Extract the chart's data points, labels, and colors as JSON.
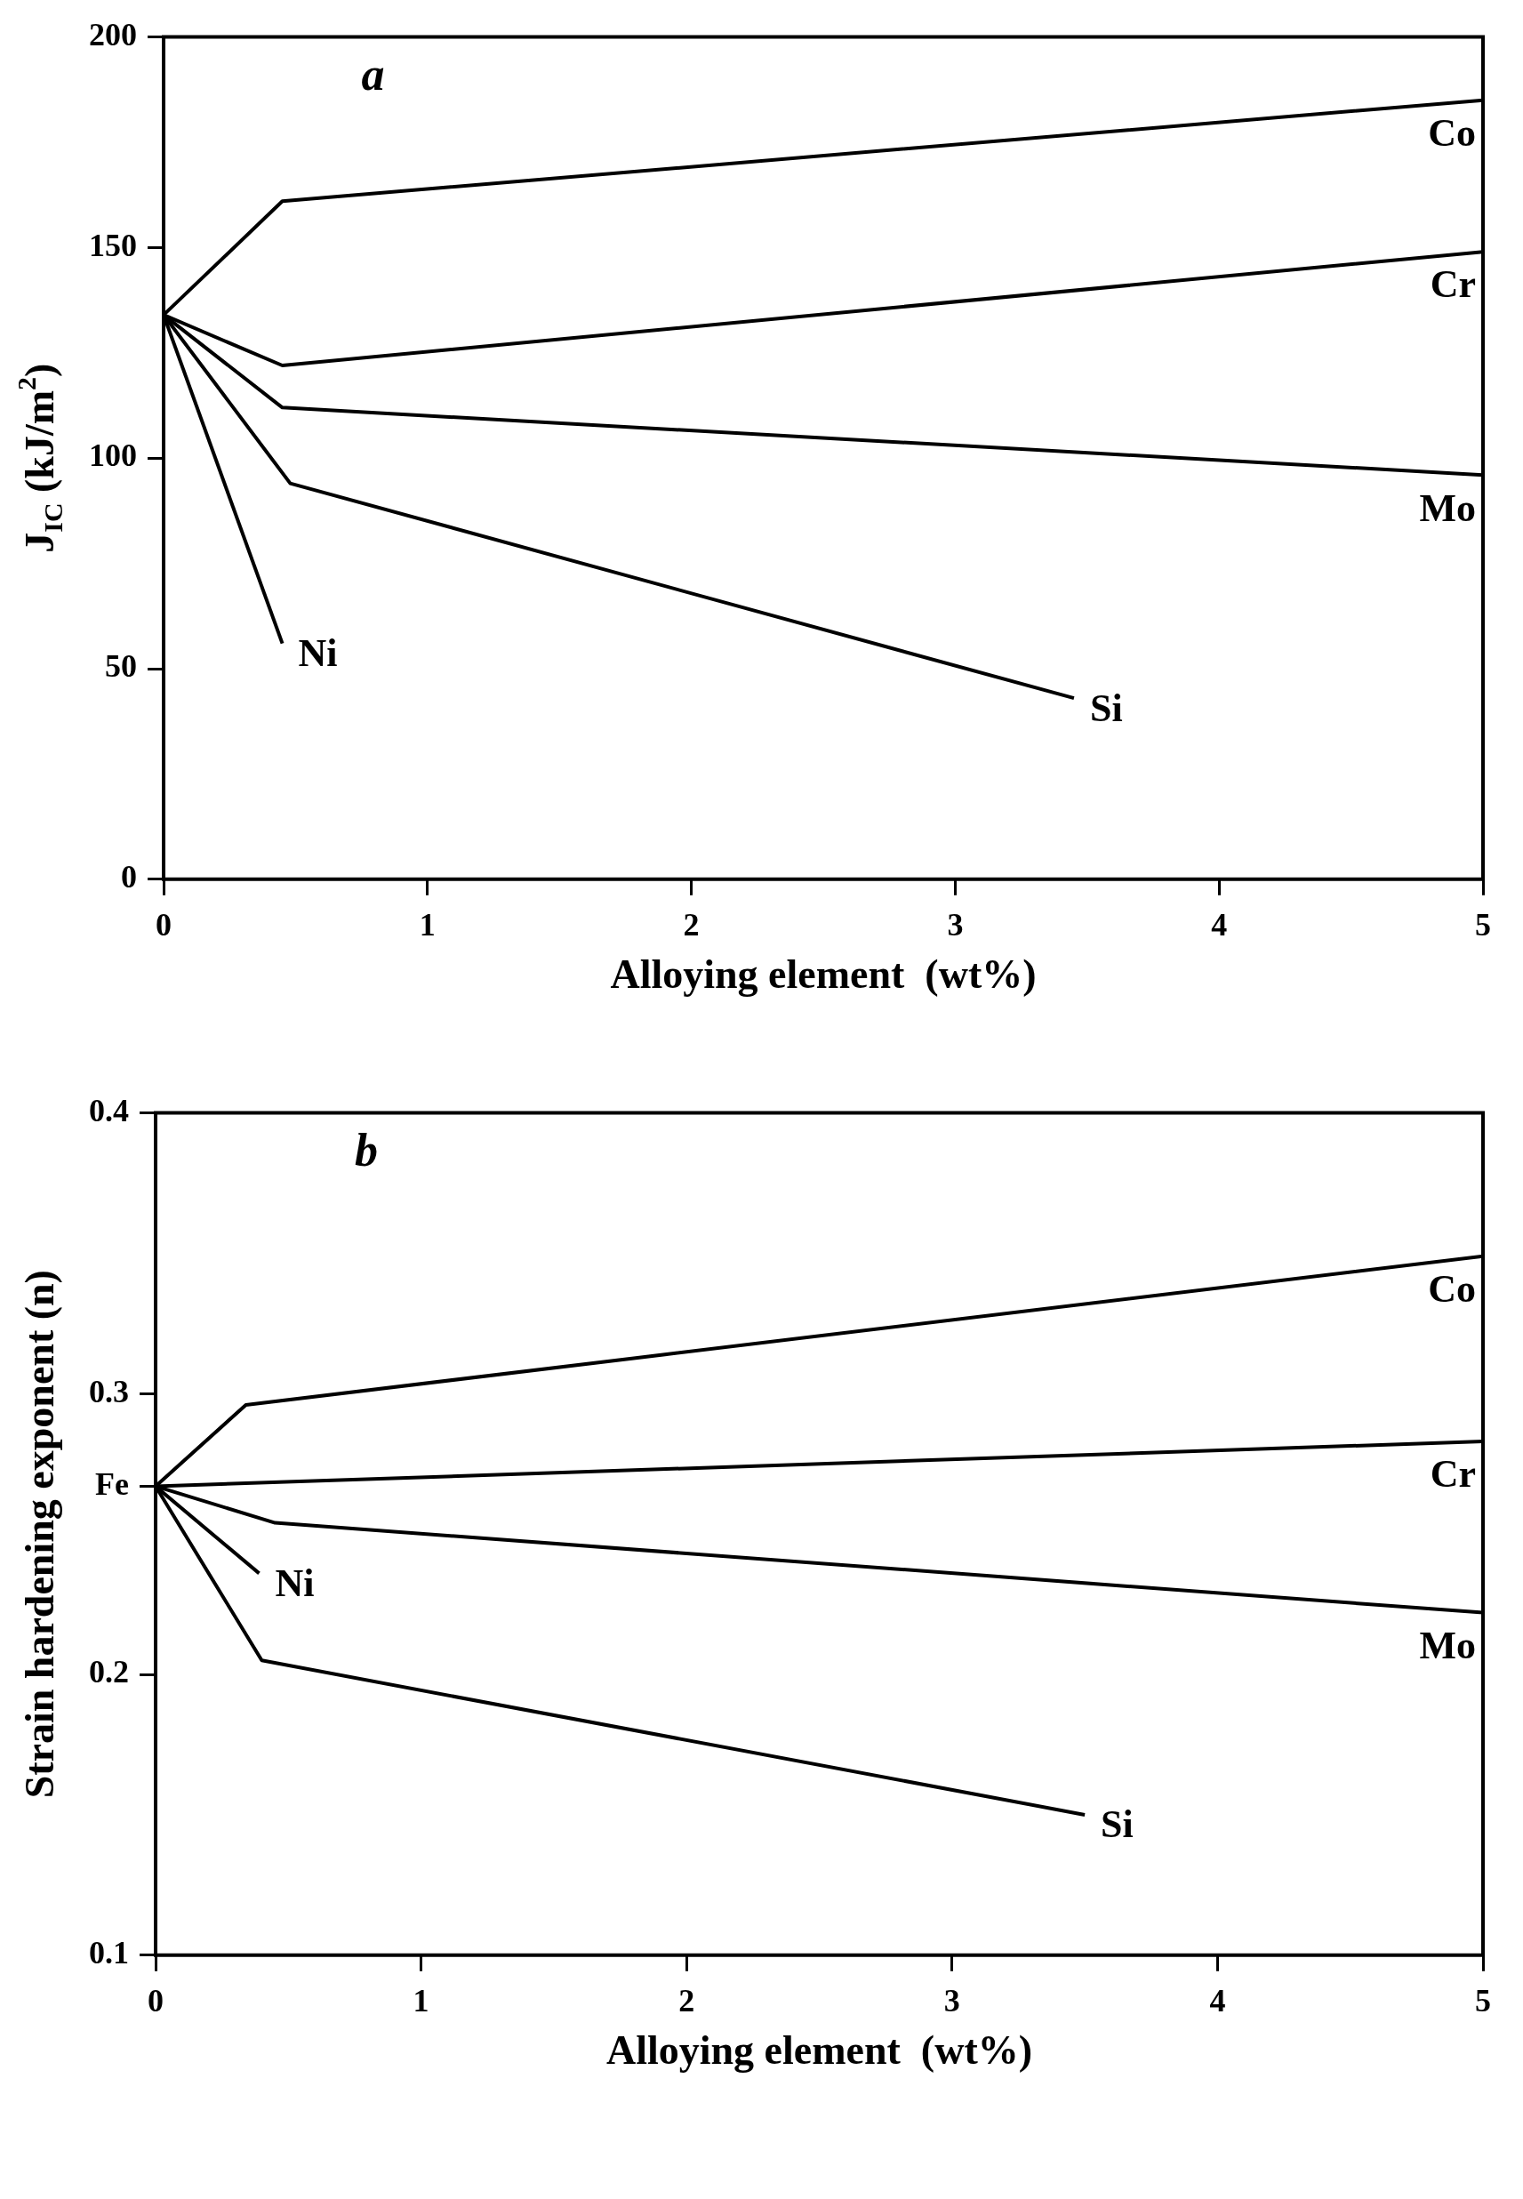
{
  "chart_data": [
    {
      "type": "line",
      "title": "a",
      "xlabel": "Alloying element  (wt%)",
      "ylabel": "J$_{IC}$ (kJ/m$^{2}$)",
      "xlim": [
        0,
        5
      ],
      "xticks": [
        0,
        1,
        2,
        3,
        4,
        5
      ],
      "ylim": [
        0,
        200
      ],
      "yticks": [
        0,
        50,
        100,
        150,
        200
      ],
      "grid": false,
      "legend": false,
      "marker": "none",
      "line_style": "solid",
      "series": [
        {
          "name": "Co",
          "color": "#000000",
          "x": [
            0,
            0.45,
            5
          ],
          "values": [
            134,
            161,
            185
          ]
        },
        {
          "name": "Cr",
          "color": "#000000",
          "x": [
            0,
            0.45,
            5
          ],
          "values": [
            134,
            122,
            149
          ]
        },
        {
          "name": "Mo",
          "color": "#000000",
          "x": [
            0,
            0.45,
            5
          ],
          "values": [
            134,
            112,
            96
          ]
        },
        {
          "name": "Ni",
          "color": "#000000",
          "x": [
            0,
            0.45
          ],
          "values": [
            134,
            56
          ]
        },
        {
          "name": "Si",
          "color": "#000000",
          "x": [
            0,
            0.48,
            3.45
          ],
          "values": [
            134,
            94,
            43
          ]
        }
      ]
    },
    {
      "type": "line",
      "title": "b",
      "xlabel": "Alloying element  (wt%)",
      "ylabel": "Strain hardening exponent (n)",
      "xlim": [
        0,
        5
      ],
      "xticks": [
        0,
        1,
        2,
        3,
        4,
        5
      ],
      "ylim": [
        0.1,
        0.4
      ],
      "yticks": [
        0.1,
        0.2,
        {
          "value": 0.267,
          "label": "Fe"
        },
        0.3,
        0.4
      ],
      "grid": false,
      "legend": false,
      "marker": "none",
      "line_style": "solid",
      "series": [
        {
          "name": "Co",
          "color": "#000000",
          "x": [
            0,
            0.34,
            5
          ],
          "values": [
            0.267,
            0.296,
            0.349
          ]
        },
        {
          "name": "Cr",
          "color": "#000000",
          "x": [
            0,
            5
          ],
          "values": [
            0.267,
            0.283
          ]
        },
        {
          "name": "Mo",
          "color": "#000000",
          "x": [
            0,
            0.45,
            5
          ],
          "values": [
            0.267,
            0.254,
            0.222
          ]
        },
        {
          "name": "Ni",
          "color": "#000000",
          "x": [
            0,
            0.39
          ],
          "values": [
            0.267,
            0.236
          ]
        },
        {
          "name": "Si",
          "color": "#000000",
          "x": [
            0,
            0.4,
            3.5
          ],
          "values": [
            0.267,
            0.205,
            0.15
          ]
        }
      ]
    }
  ]
}
